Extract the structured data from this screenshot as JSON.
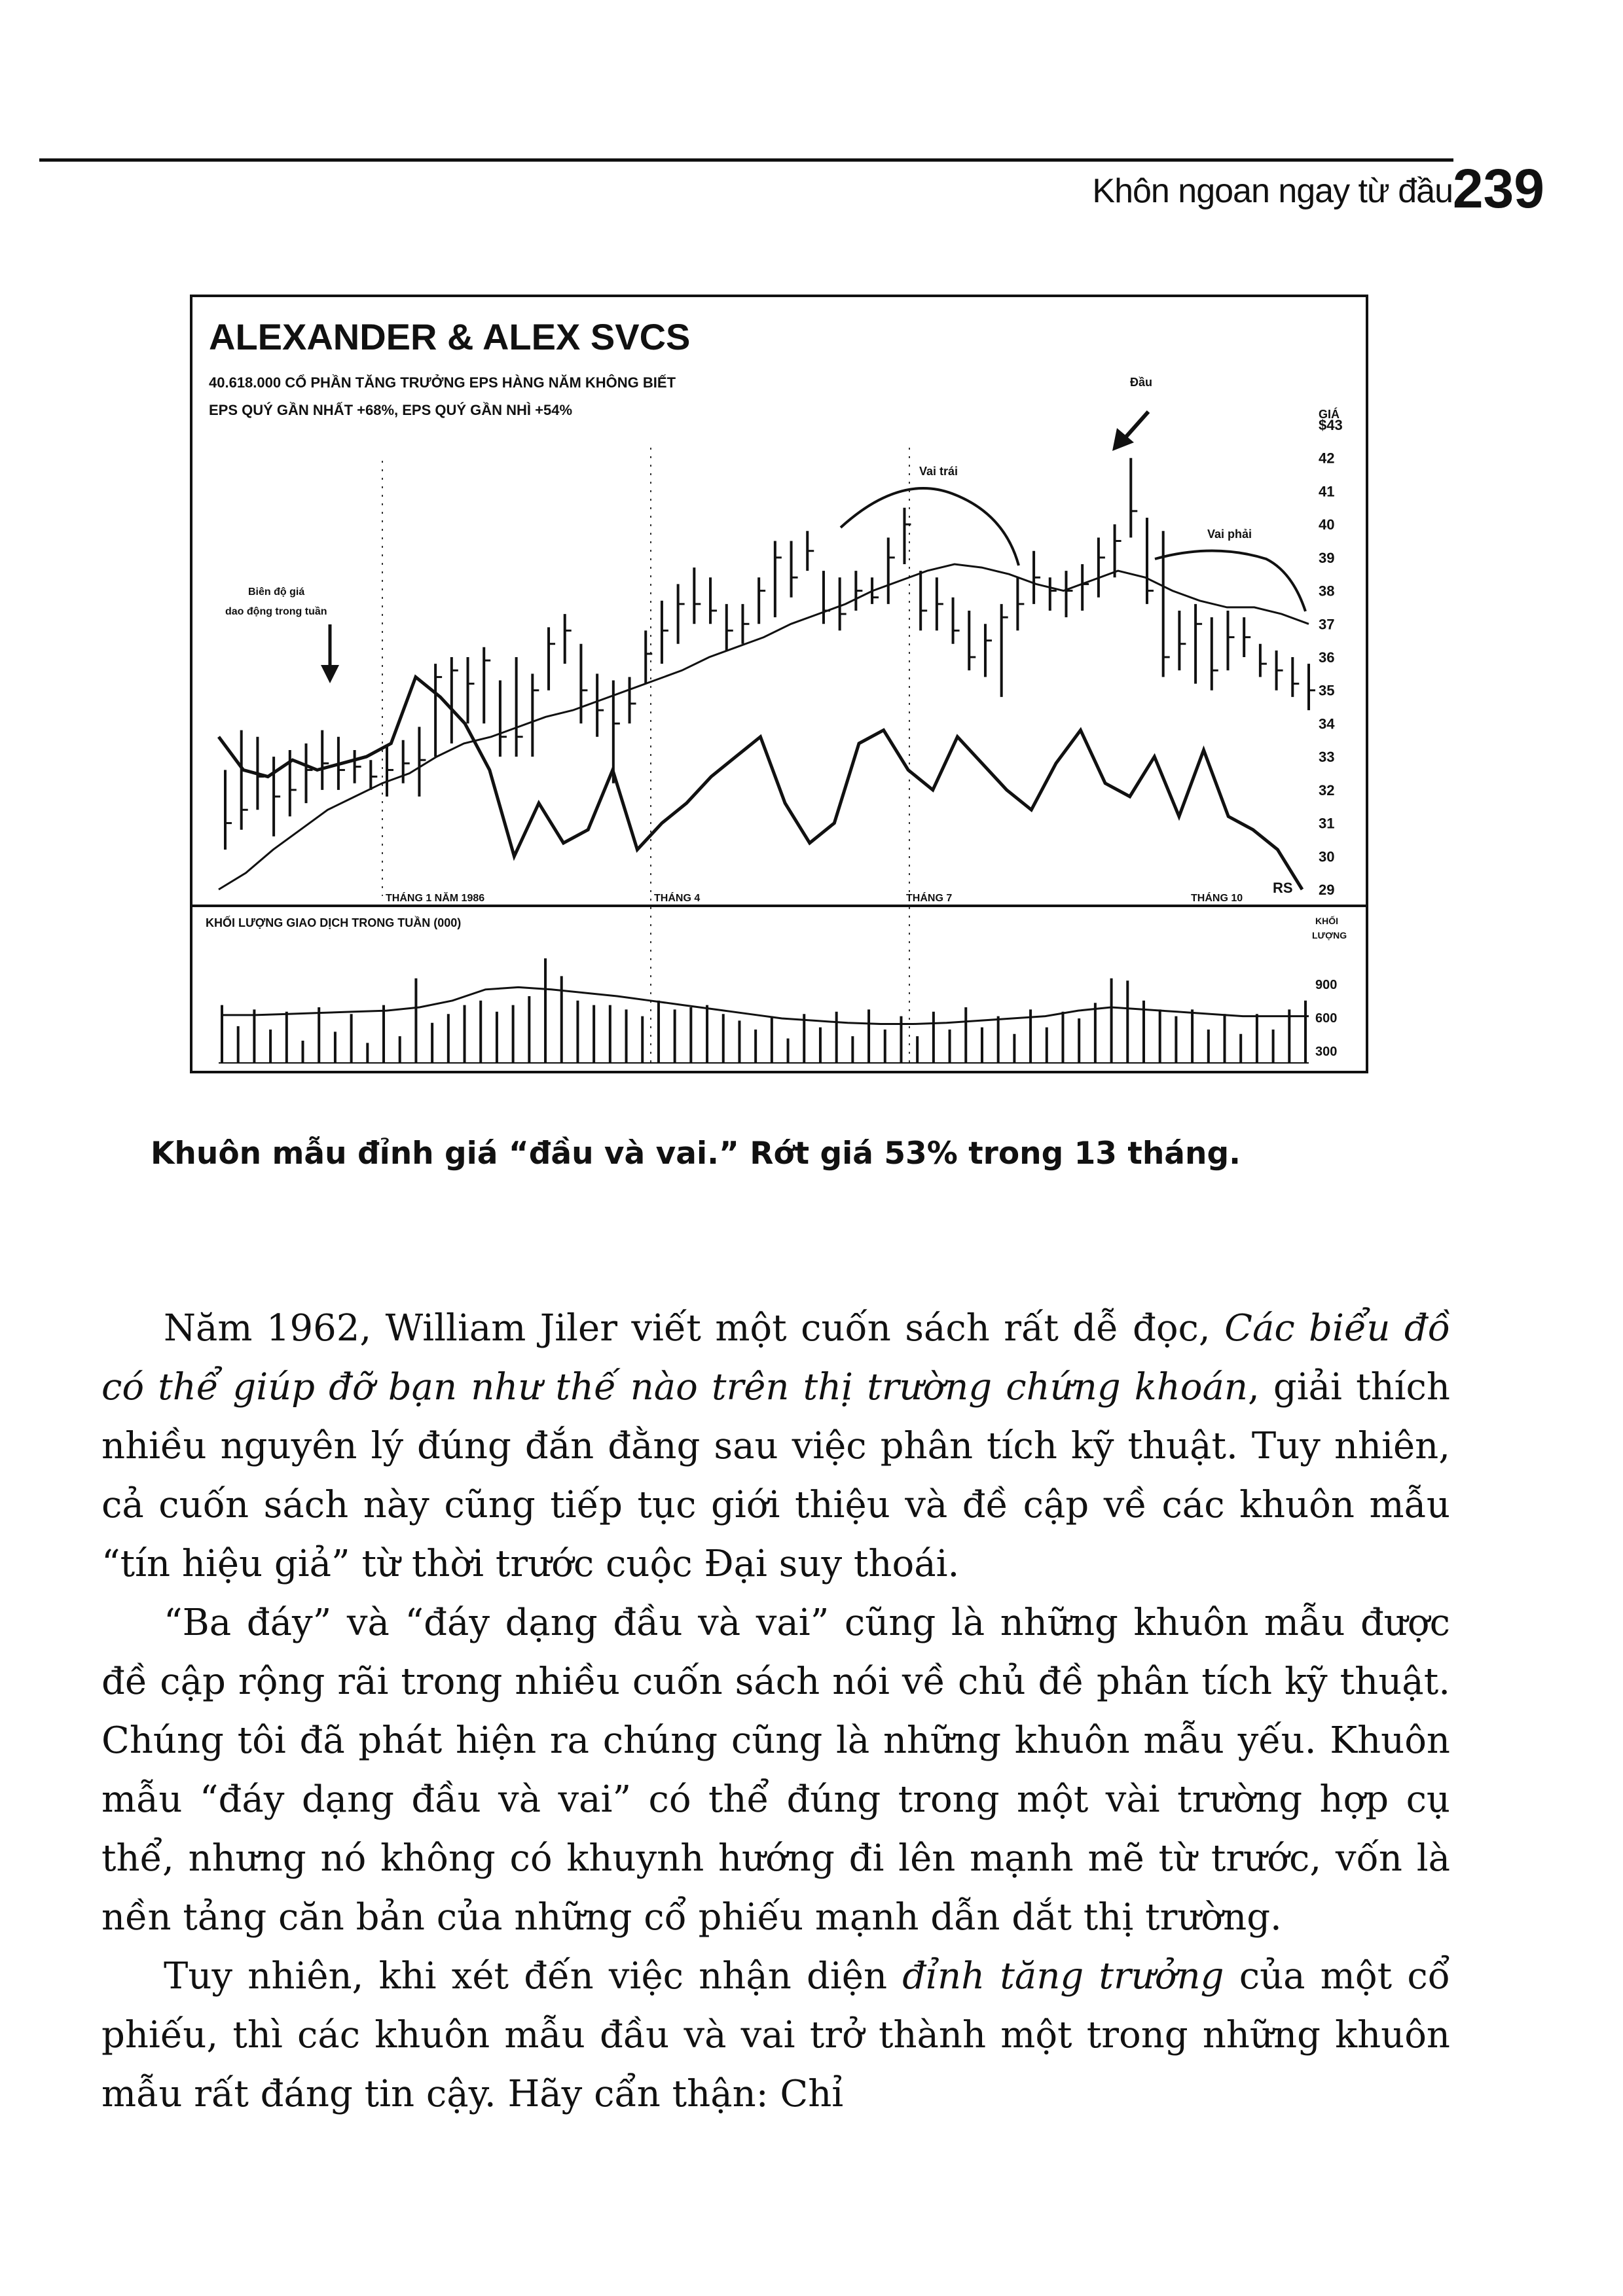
{
  "header": {
    "running_head": "Khôn ngoan ngay từ đầu",
    "page_number": "239"
  },
  "chart": {
    "title": "ALEXANDER & ALEX SVCS",
    "info_line_1": "40.618.000 CỔ PHẦN     TĂNG TRƯỞNG EPS HÀNG NĂM KHÔNG BIẾT",
    "info_line_2": "EPS QUÝ GẦN NHẤT +68%,   EPS QUÝ GẦN NHÌ +54%",
    "annotations": {
      "head": "Đầu",
      "left_shoulder": "Vai trái",
      "right_shoulder": "Vai phải",
      "weekly_range_1": "Biên độ giá",
      "weekly_range_2": "dao động trong tuần",
      "rs": "RS"
    },
    "price_axis_label": "GIÁ",
    "volume_title": "KHỐI LƯỢNG GIAO DỊCH TRONG TUẦN (000)",
    "volume_axis_label_1": "KHỐI",
    "volume_axis_label_2": "LƯỢNG"
  },
  "chart_data": {
    "type": "bar",
    "title": "ALEXANDER & ALEX SVCS",
    "x_tick_labels": [
      "THÁNG 1 NĂM 1986",
      "THÁNG 4",
      "THÁNG 7",
      "THÁNG 10"
    ],
    "y_tick_labels": [
      "$43",
      "42",
      "41",
      "40",
      "39",
      "38",
      "37",
      "36",
      "35",
      "34",
      "33",
      "32",
      "31",
      "30",
      "29"
    ],
    "ylim": [
      29,
      43
    ],
    "volume_tick_labels": [
      "900",
      "600",
      "300"
    ],
    "volume_ylim": [
      0,
      1000
    ],
    "series": [
      {
        "type": "ohlc",
        "values": [
          [
            32.6,
            30.2,
            31.0
          ],
          [
            33.8,
            30.8,
            31.4
          ],
          [
            33.6,
            31.4,
            32.4
          ],
          [
            33.0,
            30.6,
            31.8
          ],
          [
            33.2,
            31.2,
            32.0
          ],
          [
            33.4,
            31.6,
            32.6
          ],
          [
            33.8,
            32.0,
            32.8
          ],
          [
            33.6,
            32.0,
            32.6
          ],
          [
            33.2,
            32.2,
            32.7
          ],
          [
            32.9,
            32.0,
            32.4
          ],
          [
            33.3,
            31.8,
            32.6
          ],
          [
            33.5,
            32.2,
            32.8
          ],
          [
            33.9,
            31.8,
            32.9
          ],
          [
            35.8,
            33.0,
            35.4
          ],
          [
            36.0,
            33.4,
            35.6
          ],
          [
            36.0,
            34.0,
            35.2
          ],
          [
            36.3,
            34.0,
            35.9
          ],
          [
            35.3,
            33.0,
            33.6
          ],
          [
            36.0,
            33.0,
            33.6
          ],
          [
            35.5,
            33.0,
            35.0
          ],
          [
            36.9,
            35.0,
            36.4
          ],
          [
            37.3,
            35.8,
            36.8
          ],
          [
            36.4,
            34.0,
            35.0
          ],
          [
            35.5,
            33.6,
            34.4
          ],
          [
            35.3,
            32.2,
            34.0
          ],
          [
            35.4,
            34.0,
            34.6
          ],
          [
            36.8,
            35.2,
            36.1
          ],
          [
            37.7,
            35.8,
            36.8
          ],
          [
            38.2,
            36.4,
            37.6
          ],
          [
            38.7,
            37.0,
            37.6
          ],
          [
            38.4,
            37.0,
            37.4
          ],
          [
            37.6,
            36.2,
            36.8
          ],
          [
            37.6,
            36.4,
            37.0
          ],
          [
            38.4,
            37.0,
            38.0
          ],
          [
            39.5,
            37.2,
            39.0
          ],
          [
            39.5,
            37.8,
            38.4
          ],
          [
            39.8,
            38.6,
            39.2
          ],
          [
            38.6,
            37.0,
            37.4
          ],
          [
            38.4,
            36.8,
            37.3
          ],
          [
            38.6,
            37.4,
            38.0
          ],
          [
            38.4,
            37.6,
            37.8
          ],
          [
            39.6,
            37.6,
            39.0
          ],
          [
            40.5,
            38.8,
            40.0
          ],
          [
            38.6,
            36.8,
            37.4
          ],
          [
            38.4,
            36.8,
            37.6
          ],
          [
            37.8,
            36.4,
            36.8
          ],
          [
            37.4,
            35.6,
            36.0
          ],
          [
            37.0,
            35.4,
            36.5
          ],
          [
            37.6,
            34.8,
            37.2
          ],
          [
            38.4,
            36.8,
            37.6
          ],
          [
            39.2,
            37.6,
            38.4
          ],
          [
            38.4,
            37.4,
            38.0
          ],
          [
            38.6,
            37.2,
            38.0
          ],
          [
            38.8,
            37.4,
            38.2
          ],
          [
            39.6,
            37.8,
            39.0
          ],
          [
            40.0,
            38.4,
            39.5
          ],
          [
            42.0,
            39.6,
            40.4
          ],
          [
            40.2,
            37.6,
            38.0
          ],
          [
            39.8,
            35.4,
            36.0
          ],
          [
            37.4,
            35.6,
            36.4
          ],
          [
            37.6,
            35.2,
            37.0
          ],
          [
            37.2,
            35.0,
            35.6
          ],
          [
            37.4,
            35.6,
            36.6
          ],
          [
            37.2,
            36.0,
            36.6
          ],
          [
            36.4,
            35.4,
            35.8
          ],
          [
            36.2,
            35.0,
            35.6
          ],
          [
            36.0,
            34.8,
            35.2
          ],
          [
            35.8,
            34.4,
            35.0
          ]
        ]
      },
      {
        "name": "RS",
        "type": "line",
        "values": [
          33.6,
          32.6,
          32.4,
          32.9,
          32.6,
          32.8,
          33.0,
          33.4,
          35.4,
          34.8,
          34.0,
          32.6,
          30.0,
          31.6,
          30.4,
          30.8,
          32.6,
          30.2,
          31.0,
          31.6,
          32.4,
          33.0,
          33.6,
          31.6,
          30.4,
          31.0,
          33.4,
          33.8,
          32.6,
          32.0,
          33.6,
          32.8,
          32.0,
          31.4,
          32.8,
          33.8,
          32.2,
          31.8,
          33.0,
          31.2,
          33.2,
          31.2,
          30.8,
          30.2,
          29.0
        ]
      },
      {
        "name": "moving average",
        "type": "line",
        "values": [
          29.0,
          29.5,
          30.2,
          30.8,
          31.4,
          31.8,
          32.2,
          32.5,
          33.0,
          33.4,
          33.6,
          33.9,
          34.2,
          34.4,
          34.7,
          35.0,
          35.3,
          35.6,
          36.0,
          36.3,
          36.6,
          37.0,
          37.3,
          37.6,
          38.0,
          38.3,
          38.6,
          38.8,
          38.7,
          38.5,
          38.2,
          38.0,
          38.3,
          38.6,
          38.4,
          38.0,
          37.7,
          37.5,
          37.5,
          37.3,
          37.0
        ]
      },
      {
        "name": "volume",
        "type": "bar",
        "values": [
          520,
          330,
          480,
          300,
          460,
          200,
          500,
          280,
          440,
          180,
          520,
          240,
          760,
          360,
          440,
          520,
          560,
          460,
          520,
          600,
          940,
          780,
          560,
          520,
          520,
          480,
          420,
          560,
          480,
          500,
          520,
          440,
          380,
          300,
          420,
          220,
          440,
          320,
          460,
          240,
          480,
          300,
          420,
          240,
          460,
          300,
          500,
          320,
          420,
          260,
          480,
          320,
          460,
          400,
          540,
          760,
          740,
          560,
          480,
          420,
          480,
          300,
          440,
          260,
          440,
          300,
          480,
          560
        ]
      },
      {
        "name": "volume average",
        "type": "line",
        "values": [
          430,
          430,
          440,
          450,
          460,
          470,
          500,
          560,
          660,
          680,
          660,
          630,
          600,
          560,
          520,
          480,
          440,
          400,
          380,
          360,
          350,
          350,
          360,
          380,
          400,
          420,
          470,
          500,
          480,
          460,
          440,
          420,
          420,
          420
        ]
      }
    ]
  },
  "caption": "Khuôn mẫu đỉnh giá “đầu và vai.” Rớt giá 53% trong 13 tháng.",
  "body": {
    "p1_a": "Năm 1962, William Jiler viết một cuốn sách rất dễ đọc, ",
    "p1_italic": "Các biểu đồ có thể giúp đỡ bạn như thế nào trên thị trường chứng khoán",
    "p1_b": ", giải thích nhiều nguyên lý đúng đắn đằng sau việc phân tích kỹ thuật. Tuy nhiên, cả cuốn sách này cũng tiếp tục giới thiệu và đề cập về các khuôn mẫu “tín hiệu giả” từ thời trước cuộc Đại suy thoái.",
    "p2": "“Ba đáy” và “đáy dạng đầu và vai” cũng là những khuôn mẫu được đề cập rộng rãi trong nhiều cuốn sách nói về chủ đề phân tích kỹ thuật. Chúng tôi đã phát hiện ra chúng cũng là những khuôn mẫu yếu. Khuôn mẫu “đáy dạng đầu và vai” có thể đúng trong một vài trường hợp cụ thể, nhưng nó không có khuynh hướng đi lên mạnh mẽ từ trước, vốn là nền tảng căn bản của những cổ phiếu mạnh dẫn dắt thị trường.",
    "p3_a": "Tuy nhiên, khi xét đến việc nhận diện ",
    "p3_italic": "đỉnh tăng trưởng",
    "p3_b": " của một cổ phiếu, thì các khuôn mẫu đầu và vai trở thành một trong những khuôn mẫu rất đáng tin cậy. Hãy cẩn thận: Chỉ"
  }
}
